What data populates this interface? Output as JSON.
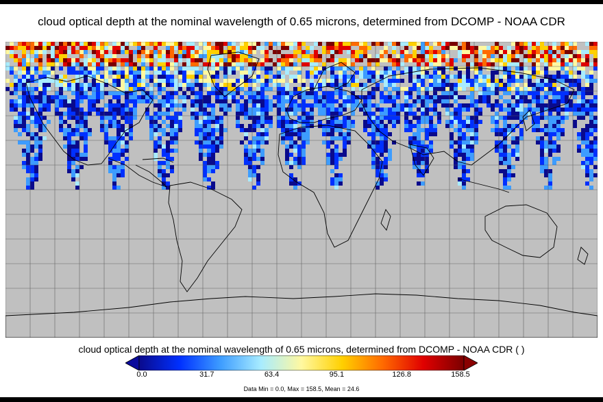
{
  "title": "cloud optical depth at the nominal wavelength of 0.65 microns, determined from DCOMP - NOAA CDR",
  "colorbar": {
    "label": "cloud optical depth at the nominal wavelength of 0.65 microns, determined from DCOMP - NOAA CDR ( )",
    "ticks": [
      "0.0",
      "31.7",
      "63.4",
      "95.1",
      "126.8",
      "158.5"
    ],
    "min": 0.0,
    "max": 158.5,
    "colors": [
      "#0a0a8c",
      "#0030ff",
      "#3d9cff",
      "#a8ecff",
      "#fff8a0",
      "#ffd000",
      "#ff6a00",
      "#e00000",
      "#7a0000"
    ],
    "under_color": "#0a0a9c",
    "over_color": "#8a0000"
  },
  "stats": "Data Min = 0.0, Max = 158.5, Mean = 24.6",
  "map": {
    "background_color": "#c0c0c0",
    "grid": true,
    "projection": "equirectangular"
  }
}
